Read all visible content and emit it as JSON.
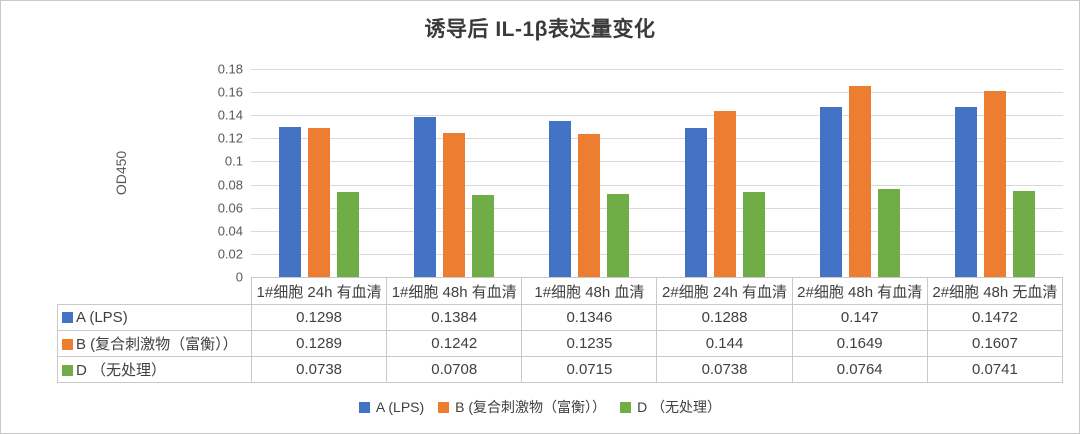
{
  "chart_data": {
    "type": "bar",
    "title": "诱导后 IL-1β表达量变化",
    "xlabel": "",
    "ylabel": "OD450",
    "ylim": [
      0,
      0.18
    ],
    "ytick_step": 0.02,
    "yticks": [
      "0.18",
      "0.16",
      "0.14",
      "0.12",
      "0.1",
      "0.08",
      "0.06",
      "0.04",
      "0.02",
      "0"
    ],
    "grid": true,
    "legend_position": "bottom",
    "data_table_shown": true,
    "categories": [
      "1#细胞 24h 有血清",
      "1#细胞 48h 有血清",
      "1#细胞 48h 血清",
      "2#细胞 24h 有血清",
      "2#细胞 48h 有血清",
      "2#细胞 48h 无血清"
    ],
    "series": [
      {
        "name": "A (LPS)",
        "color": "#4472C4",
        "values": [
          0.1298,
          0.1384,
          0.1346,
          0.1288,
          0.147,
          0.1472
        ]
      },
      {
        "name": "B (复合刺激物（富衡））",
        "color": "#ED7D31",
        "values": [
          0.1289,
          0.1242,
          0.1235,
          0.144,
          0.1649,
          0.1607
        ]
      },
      {
        "name": "D （无处理）",
        "color": "#70AD47",
        "values": [
          0.0738,
          0.0708,
          0.0715,
          0.0738,
          0.0764,
          0.0741
        ]
      }
    ]
  },
  "colors": {
    "gridline": "#d9d9d9",
    "axis_line": "#bfbfbf",
    "table_border": "#c9c9c9",
    "tick_text": "#595959",
    "table_text": "#404040",
    "title_text": "#3a3a3a",
    "frame_border": "#c8c8c8"
  }
}
